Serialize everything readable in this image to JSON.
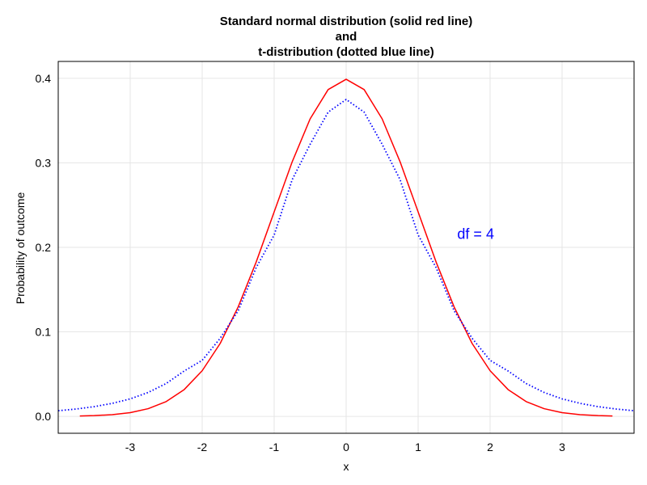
{
  "chart_data": {
    "type": "line",
    "title_lines": [
      "Standard normal distribution (solid red line)",
      "and",
      "t-distribution (dotted blue line)"
    ],
    "xlabel": "x",
    "ylabel": "Probability of outcome",
    "xlim": [
      -4.0,
      4.0
    ],
    "ylim": [
      -0.02,
      0.42
    ],
    "x_ticks": [
      -3,
      -2,
      -1,
      0,
      1,
      2,
      3
    ],
    "x_tick_labels": [
      "-3",
      "-2",
      "-1",
      "0",
      "1",
      "2",
      "3"
    ],
    "y_ticks": [
      0.0,
      0.1,
      0.2,
      0.3,
      0.4
    ],
    "y_tick_labels": [
      "0.0",
      "0.1",
      "0.2",
      "0.3",
      "0.4"
    ],
    "grid": true,
    "series": [
      {
        "color": "#ff0000",
        "style": "solid",
        "x": [
          -3.7,
          -3.5,
          -3.25,
          -3.0,
          -2.75,
          -2.5,
          -2.25,
          -2.0,
          -1.75,
          -1.5,
          -1.25,
          -1.0,
          -0.75,
          -0.5,
          -0.25,
          0.0,
          0.25,
          0.5,
          0.75,
          1.0,
          1.25,
          1.5,
          1.75,
          2.0,
          2.25,
          2.5,
          2.75,
          3.0,
          3.25,
          3.5,
          3.7
        ],
        "y": [
          0.0004,
          0.0009,
          0.002,
          0.0044,
          0.0091,
          0.0175,
          0.0317,
          0.054,
          0.0863,
          0.1295,
          0.1826,
          0.242,
          0.3011,
          0.3521,
          0.3867,
          0.3989,
          0.3867,
          0.3521,
          0.3011,
          0.242,
          0.1826,
          0.1295,
          0.0863,
          0.054,
          0.0317,
          0.0175,
          0.0091,
          0.0044,
          0.002,
          0.0009,
          0.0004
        ]
      },
      {
        "color": "#0000ff",
        "style": "dotted",
        "x": [
          -4.0,
          -3.75,
          -3.5,
          -3.25,
          -3.0,
          -2.75,
          -2.5,
          -2.25,
          -2.0,
          -1.75,
          -1.5,
          -1.25,
          -1.0,
          -0.75,
          -0.5,
          -0.25,
          0.0,
          0.25,
          0.5,
          0.75,
          1.0,
          1.25,
          1.5,
          1.75,
          2.0,
          2.25,
          2.5,
          2.75,
          3.0,
          3.25,
          3.5,
          3.75,
          4.0
        ],
        "y": [
          0.0067,
          0.0087,
          0.0115,
          0.0154,
          0.0207,
          0.0283,
          0.0389,
          0.0537,
          0.0663,
          0.0924,
          0.125,
          0.176,
          0.2147,
          0.28,
          0.322,
          0.36,
          0.375,
          0.36,
          0.322,
          0.28,
          0.2147,
          0.176,
          0.125,
          0.0924,
          0.0663,
          0.0537,
          0.0389,
          0.0283,
          0.0207,
          0.0154,
          0.0115,
          0.0087,
          0.0067
        ]
      }
    ],
    "annotations": [
      {
        "text": "df = 4",
        "x": 1.8,
        "y": 0.21,
        "color": "#0000ff"
      }
    ]
  }
}
